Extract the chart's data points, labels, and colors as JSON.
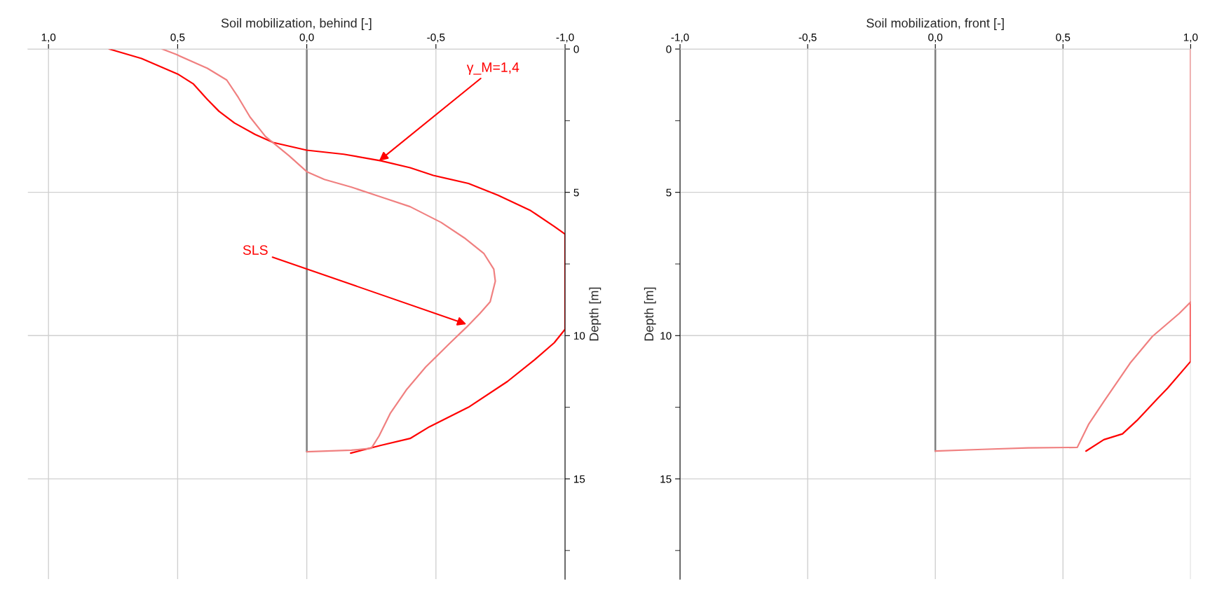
{
  "chart_data": [
    {
      "type": "line",
      "xlabel": "Soil mobilization, behind [-]",
      "ylabel": "Depth [m]",
      "xlim": [
        1.08,
        -1.0
      ],
      "xticks": [
        {
          "value": 1.0,
          "label": "1,0"
        },
        {
          "value": 0.5,
          "label": "0,5"
        },
        {
          "value": 0.0,
          "label": "0,0"
        },
        {
          "value": -0.5,
          "label": "-0,5"
        },
        {
          "value": -1.0,
          "label": "-1,0"
        }
      ],
      "ylim": [
        18.5,
        0
      ],
      "yticks": [
        0,
        {
          "value": 2.5,
          "label": null
        },
        5,
        {
          "value": 7.5,
          "label": null
        },
        10,
        {
          "value": 12.5,
          "label": null
        },
        15,
        {
          "value": 17.5,
          "label": null
        }
      ],
      "grid": true,
      "legend": false,
      "series": [
        {
          "color": "#808080",
          "x": [
            0.0,
            0.0
          ],
          "values": [
            0,
            14.05
          ]
        },
        {
          "color": "#ff0000",
          "x": [
            0.765,
            0.64,
            0.5,
            0.44,
            0.385,
            0.34,
            0.28,
            0.2,
            0.13,
            0.0,
            -0.143,
            -0.287,
            -0.4,
            -0.49,
            -0.626,
            -0.74,
            -0.867,
            -0.958,
            -1.0,
            -1.0,
            -0.958,
            -0.88,
            -0.777,
            -0.626,
            -0.475,
            -0.4,
            -0.287,
            -0.17
          ],
          "values": [
            0,
            0.33,
            0.87,
            1.21,
            1.76,
            2.17,
            2.58,
            2.98,
            3.26,
            3.53,
            3.67,
            3.9,
            4.14,
            4.41,
            4.69,
            5.1,
            5.64,
            6.19,
            6.46,
            9.78,
            10.25,
            10.86,
            11.6,
            12.5,
            13.18,
            13.59,
            13.83,
            14.1
          ]
        },
        {
          "color": "#f08080",
          "x": [
            0.56,
            0.505,
            0.385,
            0.31,
            0.265,
            0.22,
            0.16,
            0.068,
            0.0,
            -0.068,
            -0.173,
            -0.287,
            -0.4,
            -0.52,
            -0.61,
            -0.686,
            -0.724,
            -0.73,
            -0.71,
            -0.67,
            -0.618,
            -0.55,
            -0.46,
            -0.385,
            -0.324,
            -0.28,
            -0.25,
            -0.173,
            0.0
          ],
          "values": [
            0,
            0.19,
            0.67,
            1.08,
            1.69,
            2.37,
            3.05,
            3.73,
            4.28,
            4.55,
            4.82,
            5.16,
            5.5,
            6.05,
            6.59,
            7.14,
            7.68,
            8.1,
            8.82,
            9.23,
            9.71,
            10.3,
            11.1,
            11.9,
            12.7,
            13.5,
            13.93,
            14.0,
            14.05
          ]
        }
      ],
      "annotations": [
        {
          "text": "γ_M=1,4",
          "x": -0.28,
          "y": 3.9
        },
        {
          "text": "SLS",
          "x": -0.618,
          "y": 9.6
        }
      ]
    },
    {
      "type": "line",
      "xlabel": "Soil mobilization, front [-]",
      "ylabel": "Depth [m]",
      "xlim": [
        -1.0,
        1.0
      ],
      "xticks": [
        {
          "value": -1.0,
          "label": "-1,0"
        },
        {
          "value": -0.5,
          "label": "-0,5"
        },
        {
          "value": 0.0,
          "label": "0,0"
        },
        {
          "value": 0.5,
          "label": "0,5"
        },
        {
          "value": 1.0,
          "label": "1,0"
        }
      ],
      "ylim": [
        18.5,
        0
      ],
      "yticks": [
        0,
        {
          "value": 2.5,
          "label": null
        },
        5,
        {
          "value": 7.5,
          "label": null
        },
        10,
        {
          "value": 12.5,
          "label": null
        },
        15,
        {
          "value": 17.5,
          "label": null
        }
      ],
      "grid": true,
      "legend": false,
      "series": [
        {
          "color": "#808080",
          "x": [
            0.0,
            0.0
          ],
          "values": [
            0,
            14.03
          ]
        },
        {
          "color": "#ff0000",
          "x": [
            1.0,
            1.0,
            0.91,
            0.867,
            0.79,
            0.733,
            0.66,
            0.59
          ],
          "values": [
            8.83,
            10.9,
            11.83,
            12.23,
            12.96,
            13.43,
            13.63,
            14.03
          ]
        },
        {
          "color": "#f08080",
          "x": [
            1.0,
            1.0,
            0.955,
            0.85,
            0.763,
            0.66,
            0.6,
            0.556,
            0.363,
            0.185,
            0.0
          ],
          "values": [
            0,
            8.83,
            9.23,
            10.03,
            10.96,
            12.3,
            13.1,
            13.9,
            13.92,
            13.97,
            14.03
          ]
        }
      ]
    }
  ]
}
